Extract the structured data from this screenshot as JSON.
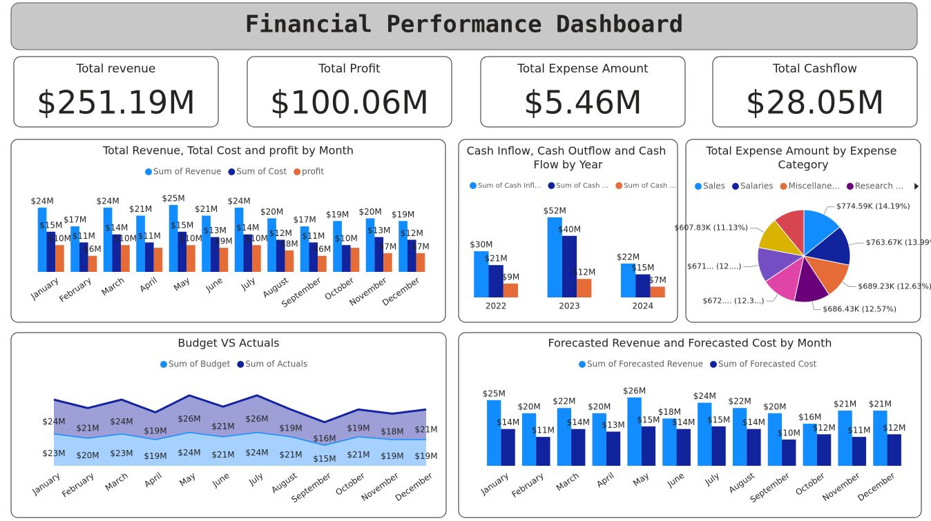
{
  "title": "Financial Performance Dashboard",
  "cards": [
    {
      "label": "Total revenue",
      "value": "$251.19M"
    },
    {
      "label": "Total Profit",
      "value": "$100.06M"
    },
    {
      "label": "Total Expense Amount",
      "value": "$5.46M"
    },
    {
      "label": "Total Cashflow",
      "value": "$28.05M"
    }
  ],
  "chart_data": [
    {
      "type": "bar",
      "title": "Total Revenue, Total Cost and profit by Month",
      "categories": [
        "January",
        "February",
        "March",
        "April",
        "May",
        "June",
        "July",
        "August",
        "September",
        "October",
        "November",
        "December"
      ],
      "series": [
        {
          "name": "Sum of Revenue",
          "color": "#118dff",
          "values": [
            24,
            17,
            24,
            21,
            25,
            21,
            24,
            20,
            17,
            19,
            20,
            19
          ],
          "value_labels": [
            "$24M",
            "$17M",
            "$24M",
            "$21M",
            "$25M",
            "$21M",
            "$24M",
            "$20M",
            "$17M",
            "$19M",
            "$20M",
            "$19M"
          ]
        },
        {
          "name": "Sum of Cost",
          "color": "#12239e",
          "values": [
            15,
            11,
            14,
            11,
            15,
            13,
            14,
            12,
            11,
            10,
            13,
            12
          ],
          "value_labels": [
            "$15M",
            "$11M",
            "$14M",
            "$11M",
            "$15M",
            "$13M",
            "$14M",
            "$12M",
            "$11M",
            "$10M",
            "$13M",
            "$12M"
          ]
        },
        {
          "name": "profit",
          "color": "#e66c37",
          "values": [
            10,
            6,
            10,
            9,
            10,
            9,
            10,
            8,
            6,
            9,
            7,
            7
          ],
          "value_labels": [
            "$10M",
            "$6M",
            "$10M",
            null,
            "$10M",
            "$9M",
            "$10M",
            "$8M",
            "$6M",
            null,
            "$7M",
            "$7M"
          ]
        }
      ]
    },
    {
      "type": "bar",
      "title": "Cash Inflow, Cash Outflow and Cash Flow by Year",
      "categories": [
        "2022",
        "2023",
        "2024"
      ],
      "series": [
        {
          "name": "Sum of Cash Infl...",
          "color": "#118dff",
          "values": [
            30,
            52,
            22
          ],
          "value_labels": [
            "$30M",
            "$52M",
            "$22M"
          ]
        },
        {
          "name": "Sum of Cash ...",
          "color": "#12239e",
          "values": [
            21,
            40,
            15
          ],
          "value_labels": [
            "$21M",
            "$40M",
            "$15M"
          ]
        },
        {
          "name": "Sum of Cash ...",
          "color": "#e66c37",
          "values": [
            9,
            12,
            7
          ],
          "value_labels": [
            "$9M",
            "$12M",
            "$7M"
          ]
        }
      ]
    },
    {
      "type": "pie",
      "title": "Total Expense Amount by Expense Category",
      "categories": [
        "Sales",
        "Salaries",
        "Miscellane...",
        "Research ...",
        null,
        null,
        null,
        null
      ],
      "values": [
        774.59,
        763.67,
        689.23,
        686.43,
        672,
        671,
        607.83,
        595
      ],
      "value_labels": [
        "$774.59K (14.19%)",
        "$763.67K (13.99%)",
        "$689.23K (12.63%)",
        "$686.43K (12.57%)",
        "$672.... (12.3...)",
        "$671... (12....)",
        "$607.83K (11.13%)",
        null
      ],
      "colors": [
        "#118dff",
        "#12239e",
        "#e66c37",
        "#6b007b",
        "#e044a7",
        "#744ec2",
        "#d9b300",
        "#d64550"
      ]
    },
    {
      "type": "area",
      "stacked": true,
      "title": "Budget VS Actuals",
      "categories": [
        "January",
        "February",
        "March",
        "April",
        "May",
        "June",
        "July",
        "August",
        "September",
        "October",
        "November",
        "December"
      ],
      "series": [
        {
          "name": "Sum of Budget",
          "color": "#118dff",
          "values": [
            23,
            20,
            23,
            19,
            24,
            21,
            24,
            21,
            15,
            21,
            19,
            19
          ],
          "value_labels": [
            "$23M",
            "$20M",
            "$23M",
            "$19M",
            "$24M",
            "$21M",
            "$24M",
            "$21M",
            "$15M",
            "$21M",
            "$19M",
            "$19M"
          ]
        },
        {
          "name": "Sum of Actuals",
          "color": "#12239e",
          "values": [
            24,
            21,
            24,
            19,
            26,
            21,
            26,
            19,
            16,
            19,
            18,
            21
          ],
          "value_labels": [
            "$24M",
            "$21M",
            "$24M",
            "$19M",
            "$26M",
            "$21M",
            "$26M",
            "$19M",
            "$16M",
            "$19M",
            "$18M",
            "$21M"
          ]
        }
      ]
    },
    {
      "type": "bar",
      "title": "Forecasted Revenue and Forecasted Cost by Month",
      "categories": [
        "January",
        "February",
        "March",
        "April",
        "May",
        "June",
        "July",
        "August",
        "September",
        "October",
        "November",
        "December"
      ],
      "series": [
        {
          "name": "Sum of Forecasted Revenue",
          "color": "#118dff",
          "values": [
            25,
            20,
            22,
            20,
            26,
            18,
            24,
            22,
            20,
            16,
            21,
            21
          ],
          "value_labels": [
            "$25M",
            "$20M",
            "$22M",
            "$20M",
            "$26M",
            "$18M",
            "$24M",
            "$22M",
            "$20M",
            "$16M",
            "$21M",
            "$21M"
          ]
        },
        {
          "name": "Sum of Forecasted Cost",
          "color": "#12239e",
          "values": [
            14,
            11,
            14,
            13,
            15,
            14,
            15,
            14,
            10,
            12,
            11,
            12
          ],
          "value_labels": [
            "$14M",
            "$11M",
            "$14M",
            "$13M",
            "$15M",
            "$14M",
            "$15M",
            "$14M",
            "$10M",
            "$12M",
            "$11M",
            "$12M"
          ]
        }
      ]
    }
  ]
}
